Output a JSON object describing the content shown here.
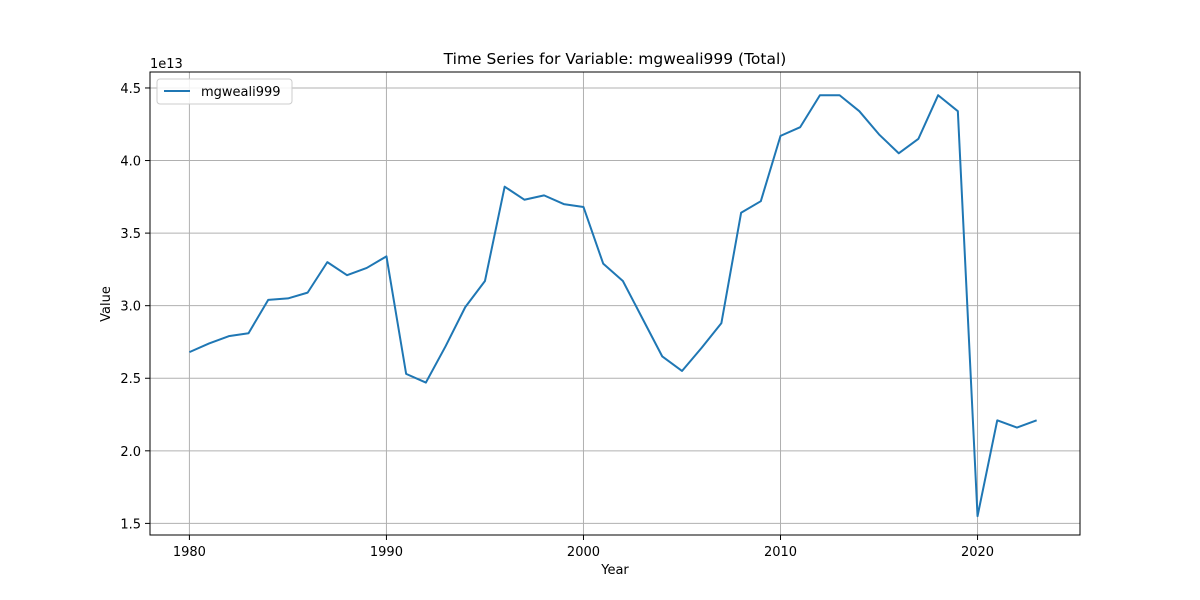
{
  "chart_data": {
    "type": "line",
    "title": "Time Series for Variable: mgweali999 (Total)",
    "xlabel": "Year",
    "ylabel": "Value",
    "y_offset_label": "1e13",
    "xlim": [
      1978,
      2025.2
    ],
    "ylim": [
      1.42,
      4.61
    ],
    "x_ticks": [
      1980,
      1990,
      2000,
      2010,
      2020
    ],
    "y_ticks": [
      1.5,
      2.0,
      2.5,
      3.0,
      3.5,
      4.0,
      4.5
    ],
    "y_tick_labels": [
      "1.5",
      "2.0",
      "2.5",
      "3.0",
      "3.5",
      "4.0",
      "4.5"
    ],
    "grid": true,
    "legend_position": "upper-left",
    "series": [
      {
        "name": "mgweali999",
        "color": "#1f77b4",
        "x": [
          1980,
          1981,
          1982,
          1983,
          1984,
          1985,
          1986,
          1987,
          1988,
          1989,
          1990,
          1991,
          1992,
          1993,
          1994,
          1995,
          1996,
          1997,
          1998,
          1999,
          2000,
          2001,
          2002,
          2003,
          2004,
          2005,
          2006,
          2007,
          2008,
          2009,
          2010,
          2011,
          2012,
          2013,
          2014,
          2015,
          2016,
          2017,
          2018,
          2019,
          2020,
          2021,
          2022,
          2023
        ],
        "y": [
          2.68,
          2.74,
          2.79,
          2.81,
          3.04,
          3.05,
          3.09,
          3.3,
          3.21,
          3.26,
          3.34,
          2.53,
          2.47,
          2.72,
          2.99,
          3.17,
          3.82,
          3.73,
          3.76,
          3.7,
          3.68,
          3.29,
          3.17,
          2.91,
          2.65,
          2.55,
          2.71,
          2.88,
          3.64,
          3.72,
          4.17,
          4.23,
          4.45,
          4.45,
          4.34,
          4.18,
          4.05,
          4.15,
          4.45,
          4.34,
          1.55,
          2.21,
          2.16,
          2.21
        ]
      }
    ]
  }
}
